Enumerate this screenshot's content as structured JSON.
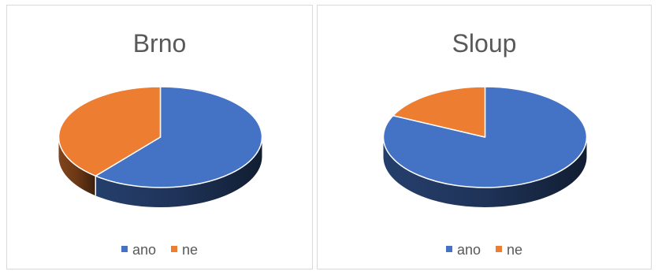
{
  "chart_data": [
    {
      "type": "pie",
      "title": "Brno",
      "categories": [
        "ano",
        "ne"
      ],
      "values": [
        61,
        39
      ],
      "colors": [
        "#4472C4",
        "#ED7D31"
      ],
      "legend": "bottom"
    },
    {
      "type": "pie",
      "title": "Sloup",
      "categories": [
        "ano",
        "ne"
      ],
      "values": [
        82,
        18
      ],
      "colors": [
        "#4472C4",
        "#ED7D31"
      ],
      "legend": "bottom"
    }
  ]
}
